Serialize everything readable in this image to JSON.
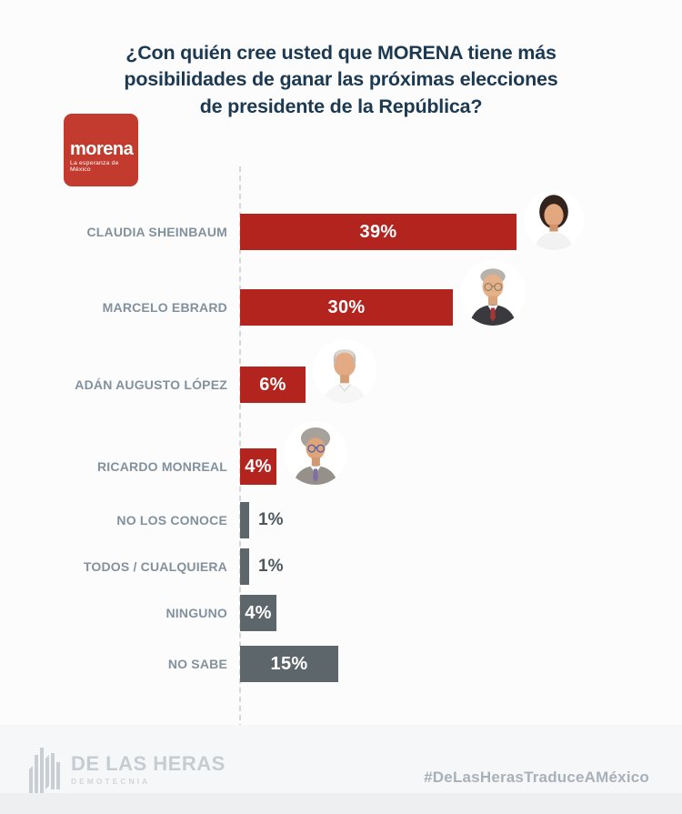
{
  "title": "¿Con quién cree usted que MORENA tiene más\nposibilidades de ganar las próximas elecciones\nde presidente de la República?",
  "logo": {
    "name": "morena",
    "tagline": "La esperanza de México"
  },
  "colors": {
    "bar_red": "#b3241f",
    "bar_gray": "#5d666b",
    "title_navy": "#1c3952",
    "category_label_gray": "#82919e",
    "logo_red": "#c23b2e"
  },
  "chart_data": {
    "type": "bar",
    "orientation": "horizontal",
    "title": "¿Con quién cree usted que MORENA tiene más posibilidades de ganar las próximas elecciones de presidente de la República?",
    "categories": [
      "CLAUDIA SHEINBAUM",
      "MARCELO EBRARD",
      "ADÁN AUGUSTO LÓPEZ",
      "RICARDO MONREAL",
      "NO LOS CONOCE",
      "TODOS / CUALQUIERA",
      "NINGUNO",
      "NO SABE"
    ],
    "values": [
      39,
      30,
      6,
      4,
      1,
      1,
      4,
      15
    ],
    "value_labels": [
      "39%",
      "30%",
      "6%",
      "4%",
      "1%",
      "1%",
      "4%",
      "15%"
    ],
    "bar_colors": [
      "red",
      "red",
      "red",
      "red",
      "gray",
      "gray",
      "gray",
      "gray"
    ],
    "has_photo": [
      true,
      true,
      true,
      true,
      false,
      false,
      false,
      false
    ],
    "xlabel": "",
    "ylabel": "",
    "xlim": [
      0,
      45
    ],
    "grid": false,
    "legend": false
  },
  "footer": {
    "brand": "DE LAS HERAS",
    "brand_sub": "DEMOTECNIA",
    "hashtag": "#DeLasHerasTraduceAMéxico"
  }
}
